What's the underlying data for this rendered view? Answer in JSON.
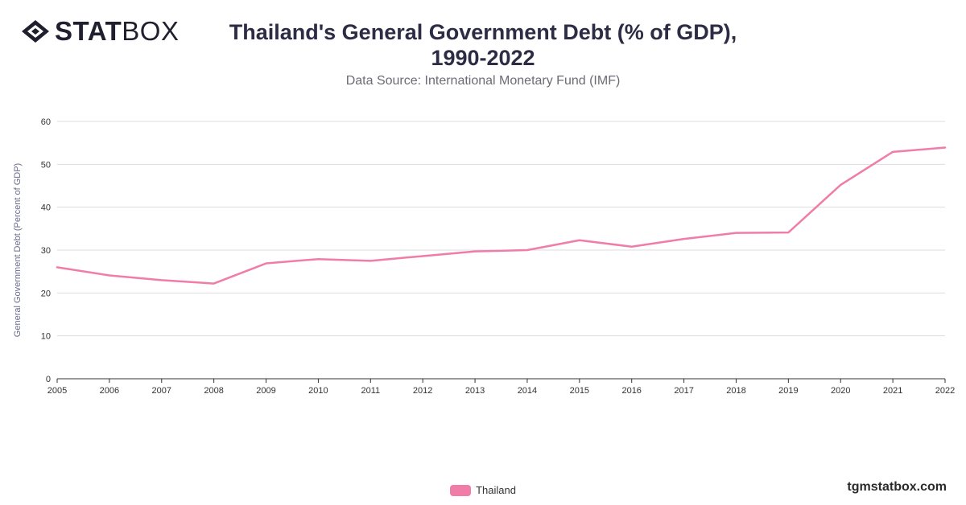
{
  "header": {
    "logo_bold": "STAT",
    "logo_light": "BOX",
    "title_line1": "Thailand's General Government Debt (% of GDP),",
    "title_line2": "1990-2022",
    "subtitle": "Data Source: International Monetary Fund (IMF)"
  },
  "footer": {
    "watermark": "tgmstatbox.com"
  },
  "colors": {
    "series": "#f07ca8",
    "grid": "#dddddd",
    "axis": "#333333"
  },
  "chart_data": {
    "type": "line",
    "title": "Thailand's General Government Debt (% of GDP), 1990-2022",
    "subtitle": "Data Source: International Monetary Fund (IMF)",
    "xlabel": "",
    "ylabel": "General Government Debt (Percent of GDP)",
    "categories": [
      "2005",
      "2006",
      "2007",
      "2008",
      "2009",
      "2010",
      "2011",
      "2012",
      "2013",
      "2014",
      "2015",
      "2016",
      "2017",
      "2018",
      "2019",
      "2020",
      "2021",
      "2022"
    ],
    "series": [
      {
        "name": "Thailand",
        "values": [
          26.0,
          24.1,
          23.0,
          22.2,
          26.9,
          27.9,
          27.5,
          28.6,
          29.7,
          30.0,
          32.3,
          30.8,
          32.6,
          34.0,
          34.1,
          45.2,
          52.9,
          53.9
        ]
      }
    ],
    "ylim": [
      0,
      60
    ],
    "yticks": [
      0,
      10,
      20,
      30,
      40,
      50,
      60
    ],
    "grid": true,
    "legend": "bottom-center"
  }
}
